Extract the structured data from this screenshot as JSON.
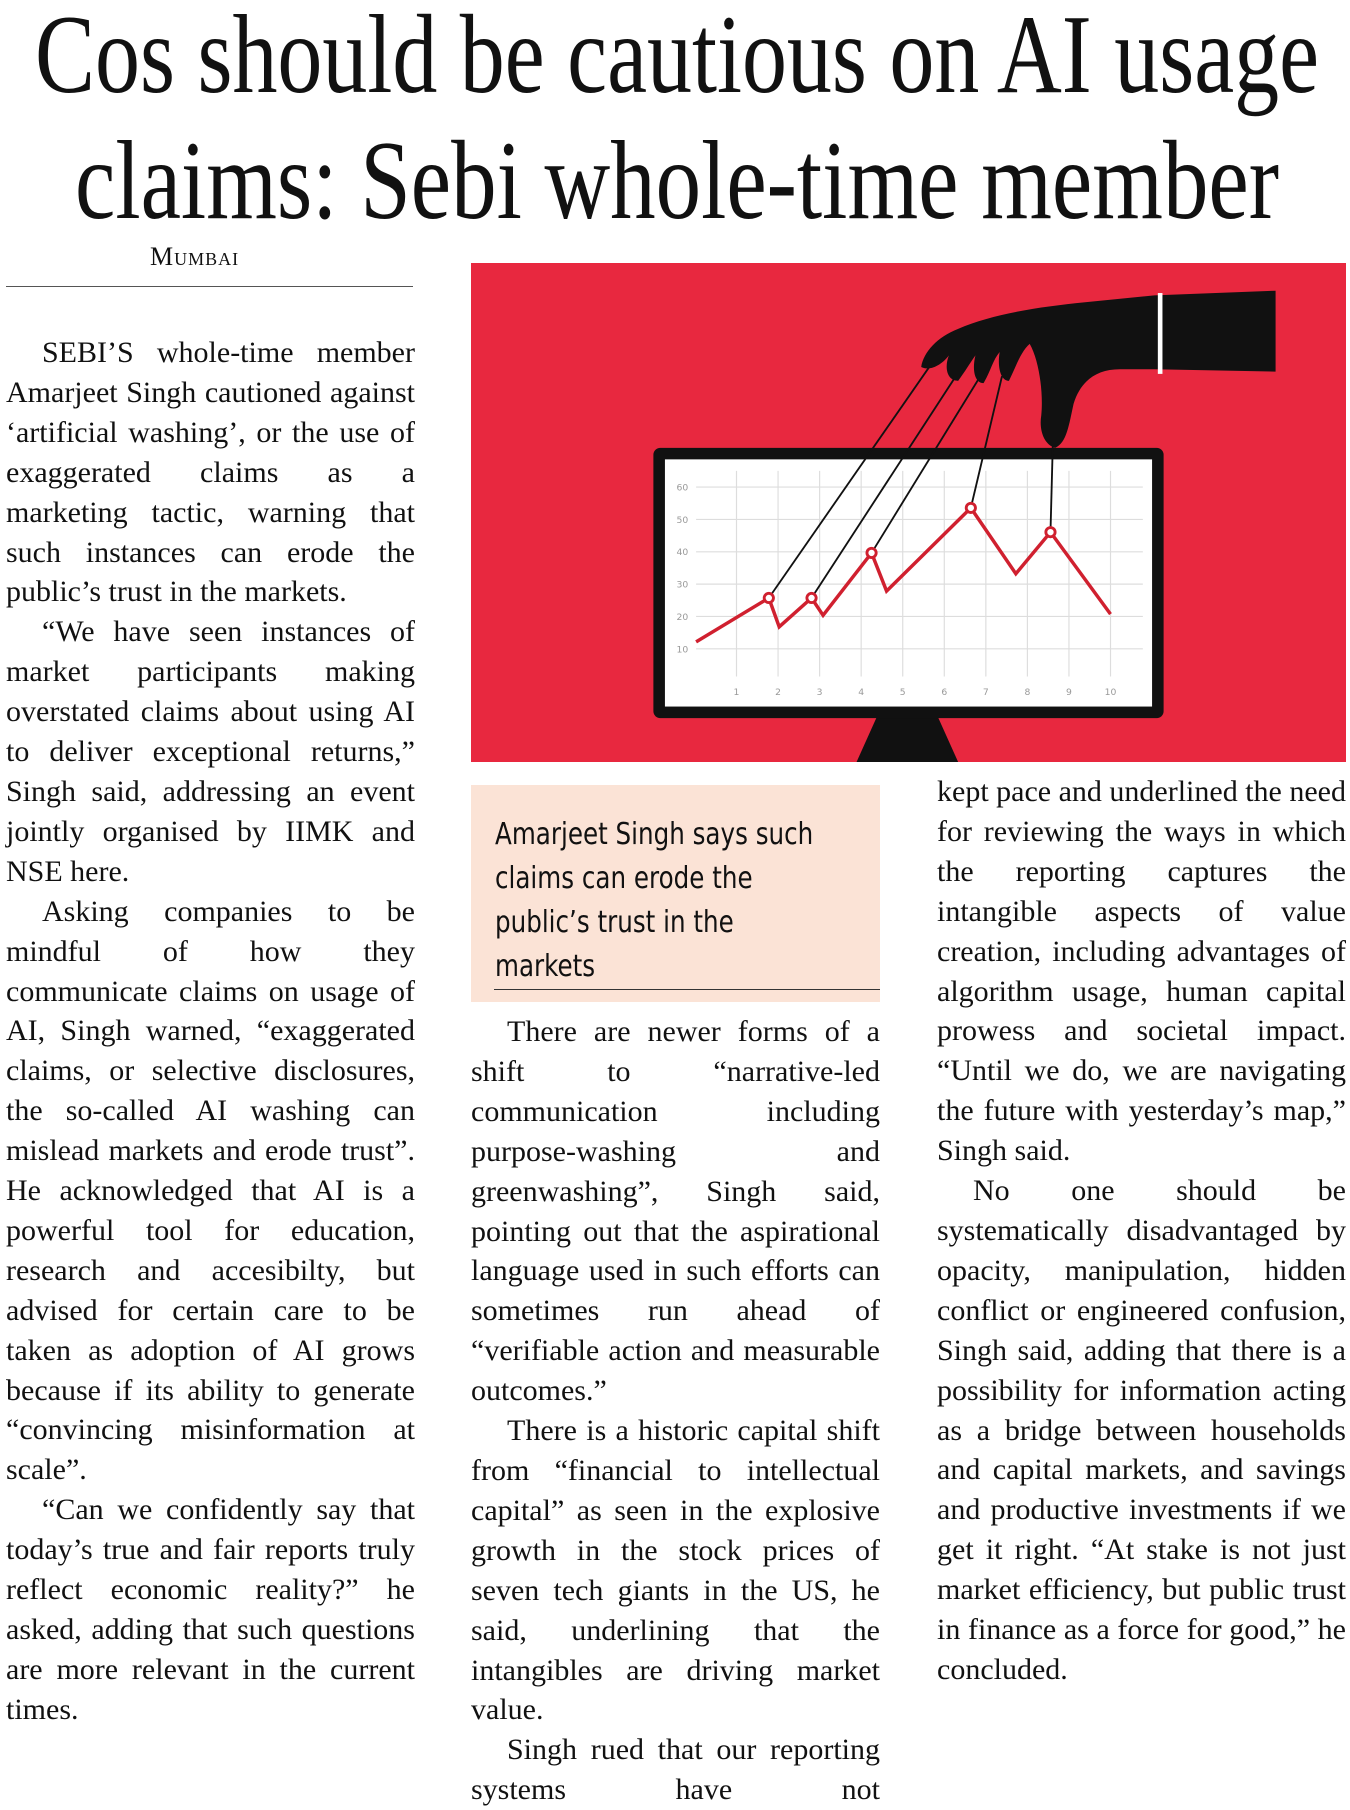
{
  "headline": {
    "lines": [
      "Cos should be cautious on AI usage",
      "claims: Sebi whole-time member"
    ]
  },
  "dateline": "Mumbai",
  "illustration": {
    "yticks": [
      "60",
      "50",
      "40",
      "30",
      "20",
      "10"
    ],
    "xticks": [
      "1",
      "2",
      "3",
      "4",
      "5",
      "6",
      "7",
      "8",
      "9",
      "10"
    ]
  },
  "pull_quote": "Amarjeet Singh says such claims can erode the public’s trust in the markets",
  "columns": [
    {
      "paragraphs": [
        "SEBI’S whole-time member Amarjeet Singh cautioned against ‘artificial washing’, or the use of exaggerated claims as a marketing tactic, warning that such instances can erode the public’s trust in the markets.",
        "“We have seen instances of market participants making overstated claims about using AI to deliver exceptional returns,” Singh said, addressing an event jointly organised by IIMK and NSE here.",
        "Asking companies to be mindful of how they communicate claims on usage of AI, Singh warned, “exaggerated claims, or selective disclosures, the so-called AI washing can mislead markets and erode trust”. He acknowledged that AI is a powerful tool for education, research and accesibilty, but advised for certain care to be taken as adoption of AI grows because if its ability to generate “convincing misinformation at scale”.",
        "“Can we confidently say that today’s true and fair reports truly reflect economic reality?” he asked, adding that such questions are more relevant in the current times."
      ]
    },
    {
      "paragraphs": [
        "There are newer forms of a shift to “narrative-led communication including purpose-washing and greenwashing”, Singh said, pointing out that the aspirational language used in such efforts can sometimes run ahead of “verifiable action and measurable outcomes.”",
        "There is a historic capital shift from “financial to intellectual capital” as seen in the explosive growth in the stock prices of seven tech giants in the US, he said, underlining that the intangibles are driving market value.",
        "Singh rued that our reporting systems have not"
      ]
    },
    {
      "paragraphs": [
        "kept pace and underlined the need for reviewing the ways in which the reporting captures the intangible aspects of value creation, including advantages of algorithm usage, human capital prowess and societal impact. “Until we do, we are navigating the future with yesterday’s map,” Singh said.",
        "No one should be systematically disadvantaged by opacity, manipulation, hidden conflict or engineered confusion, Singh said, adding that there is a possibility for information acting as a bridge between households and capital markets, and savings and productive investments if we get it right. “At stake is not just market efficiency, but public trust in finance as a force for good,” he concluded."
      ]
    }
  ]
}
